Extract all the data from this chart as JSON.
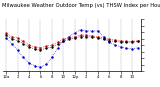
{
  "title": "Milwaukee Weather Outdoor Temp (vs) THSW Index per Hour (Last 24 Hours)",
  "title_fontsize": 3.8,
  "background_color": "#ffffff",
  "plot_bg_color": "#ffffff",
  "grid_color": "#999999",
  "hours": [
    0,
    1,
    2,
    3,
    4,
    5,
    6,
    7,
    8,
    9,
    10,
    11,
    12,
    13,
    14,
    15,
    16,
    17,
    18,
    19,
    20,
    21,
    22,
    23
  ],
  "temp": [
    55,
    50,
    48,
    43,
    38,
    35,
    34,
    36,
    38,
    42,
    46,
    48,
    50,
    52,
    52,
    51,
    50,
    48,
    46,
    45,
    44,
    43,
    43,
    44
  ],
  "thsw": [
    48,
    40,
    30,
    20,
    12,
    8,
    6,
    10,
    20,
    34,
    44,
    50,
    55,
    60,
    58,
    58,
    58,
    50,
    42,
    38,
    35,
    33,
    32,
    34
  ],
  "black": [
    52,
    47,
    44,
    40,
    35,
    32,
    31,
    33,
    35,
    39,
    43,
    46,
    48,
    50,
    50,
    49,
    48,
    46,
    44,
    43,
    42,
    42,
    42,
    43
  ],
  "temp_color": "#cc0000",
  "thsw_color": "#0000cc",
  "black_color": "#000000",
  "ylim_min": 0,
  "ylim_max": 75,
  "ytick_count": 8,
  "ylabel_fontsize": 3.2,
  "xlabel_fontsize": 2.8,
  "marker_size": 1.5,
  "line_width": 0.5,
  "vgrid_x": [
    0,
    2,
    4,
    6,
    8,
    10,
    12,
    14,
    16,
    18,
    20,
    22
  ],
  "xtick_labels": [
    "12a",
    "2",
    "4",
    "6",
    "8",
    "10",
    "12p",
    "2",
    "4",
    "6",
    "8",
    "10"
  ]
}
